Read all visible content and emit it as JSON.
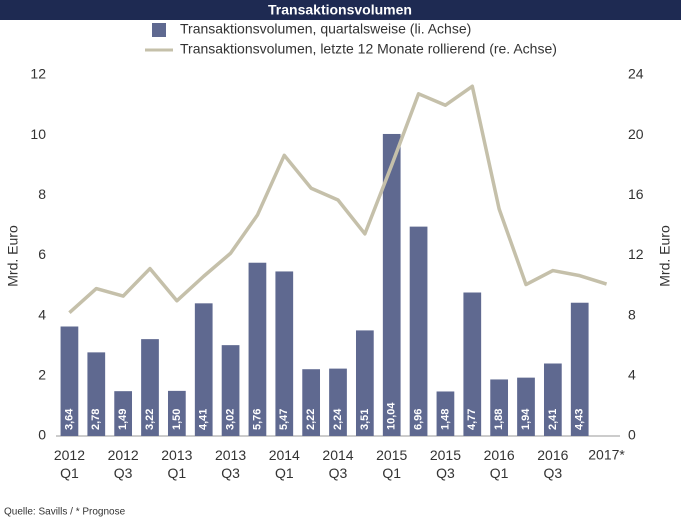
{
  "chart_data": {
    "type": "bar_line",
    "title": "Transaktionsvolumen",
    "ylabel": "Mrd. Euro",
    "y2label": "Mrd. Euro",
    "source": "Quelle: Savills / * Prognose",
    "categories": [
      "2012 Q1",
      null,
      "2012 Q3",
      null,
      "2013 Q1",
      null,
      "2013 Q3",
      null,
      "2014 Q1",
      null,
      "2014 Q3",
      null,
      "2015 Q1",
      null,
      "2015 Q3",
      null,
      "2016 Q1",
      null,
      "2016 Q3",
      null,
      "2017*"
    ],
    "series": [
      {
        "name": "Transaktionsvolumen, quartalsweise (li. Achse)",
        "type": "bar",
        "color": "#5f6990",
        "values": [
          3.64,
          2.78,
          1.49,
          3.22,
          1.5,
          4.41,
          3.02,
          5.76,
          5.47,
          2.22,
          2.24,
          3.51,
          10.04,
          6.96,
          1.48,
          4.77,
          1.88,
          1.94,
          2.41,
          4.43,
          null
        ],
        "value_labels": [
          "3,64",
          "2,78",
          "1,49",
          "3,22",
          "1,50",
          "4,41",
          "3,02",
          "5,76",
          "5,47",
          "2,22",
          "2,24",
          "3,51",
          "10,04",
          "6,96",
          "1,48",
          "4,77",
          "1,88",
          "1,94",
          "2,41",
          "4,43",
          null
        ]
      },
      {
        "name": "Transaktionsvolumen, letzte 12 Monate rollierend (re. Achse)",
        "type": "line",
        "axis": "y2",
        "color": "#c5c0aa",
        "values": [
          8.2,
          9.8,
          9.3,
          11.13,
          8.99,
          10.62,
          12.15,
          14.69,
          18.66,
          16.47,
          15.69,
          13.44,
          18.01,
          22.75,
          21.99,
          23.25,
          15.09,
          10.07,
          11.0,
          10.66,
          10.1
        ]
      }
    ],
    "ylim": [
      0,
      12
    ],
    "yticks": [
      0,
      2,
      4,
      6,
      8,
      10,
      12
    ],
    "y2lim": [
      0,
      24
    ],
    "y2ticks": [
      0,
      4,
      8,
      12,
      16,
      20,
      24
    ]
  }
}
